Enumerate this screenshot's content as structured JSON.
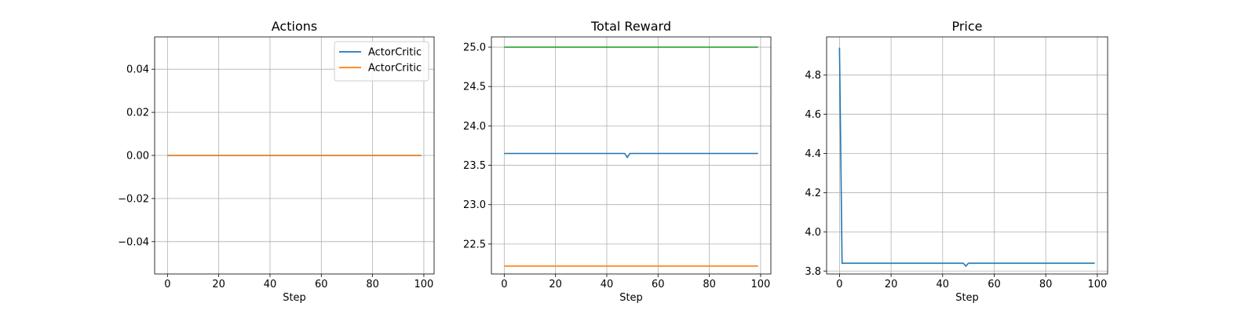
{
  "chart_data": [
    {
      "type": "line",
      "title": "Actions",
      "xlabel": "Step",
      "ylabel": "",
      "xlim": [
        -5,
        104
      ],
      "ylim": [
        -0.055,
        0.055
      ],
      "xticks": [
        0,
        20,
        40,
        60,
        80,
        100
      ],
      "yticks": [
        -0.04,
        -0.02,
        0.0,
        0.02,
        0.04
      ],
      "ytick_labels": [
        "−0.04",
        "−0.02",
        "0.00",
        "0.02",
        "0.04"
      ],
      "grid": true,
      "legend": "upper right",
      "series": [
        {
          "name": "ActorCritic",
          "color": "#1f77b4",
          "x": [
            0,
            99
          ],
          "y": [
            0.0,
            0.0
          ]
        },
        {
          "name": "ActorCritic",
          "color": "#ff7f0e",
          "x": [
            0,
            99
          ],
          "y": [
            0.0,
            0.0
          ]
        }
      ]
    },
    {
      "type": "line",
      "title": "Total Reward",
      "xlabel": "Step",
      "ylabel": "",
      "xlim": [
        -5,
        104
      ],
      "ylim": [
        22.12,
        25.13
      ],
      "xticks": [
        0,
        20,
        40,
        60,
        80,
        100
      ],
      "yticks": [
        22.5,
        23.0,
        23.5,
        24.0,
        24.5,
        25.0
      ],
      "ytick_labels": [
        "22.5",
        "23.0",
        "23.5",
        "24.0",
        "24.5",
        "25.0"
      ],
      "grid": true,
      "legend": "none",
      "series": [
        {
          "color": "#1f77b4",
          "x": [
            0,
            47,
            48,
            49,
            99
          ],
          "y": [
            23.65,
            23.65,
            23.6,
            23.65,
            23.65
          ]
        },
        {
          "color": "#ff7f0e",
          "x": [
            0,
            99
          ],
          "y": [
            22.22,
            22.22
          ]
        },
        {
          "color": "#2ca02c",
          "x": [
            0,
            99
          ],
          "y": [
            25.0,
            25.0
          ]
        }
      ]
    },
    {
      "type": "line",
      "title": "Price",
      "xlabel": "Step",
      "ylabel": "",
      "xlim": [
        -5,
        104
      ],
      "ylim": [
        3.785,
        4.995
      ],
      "xticks": [
        0,
        20,
        40,
        60,
        80,
        100
      ],
      "yticks": [
        3.8,
        4.0,
        4.2,
        4.4,
        4.6,
        4.8
      ],
      "ytick_labels": [
        "3.8",
        "4.0",
        "4.2",
        "4.4",
        "4.6",
        "4.8"
      ],
      "grid": true,
      "legend": "none",
      "series": [
        {
          "color": "#1f77b4",
          "x": [
            0,
            1,
            48,
            49,
            50,
            99
          ],
          "y": [
            4.94,
            3.84,
            3.84,
            3.825,
            3.84,
            3.84
          ]
        }
      ]
    }
  ]
}
